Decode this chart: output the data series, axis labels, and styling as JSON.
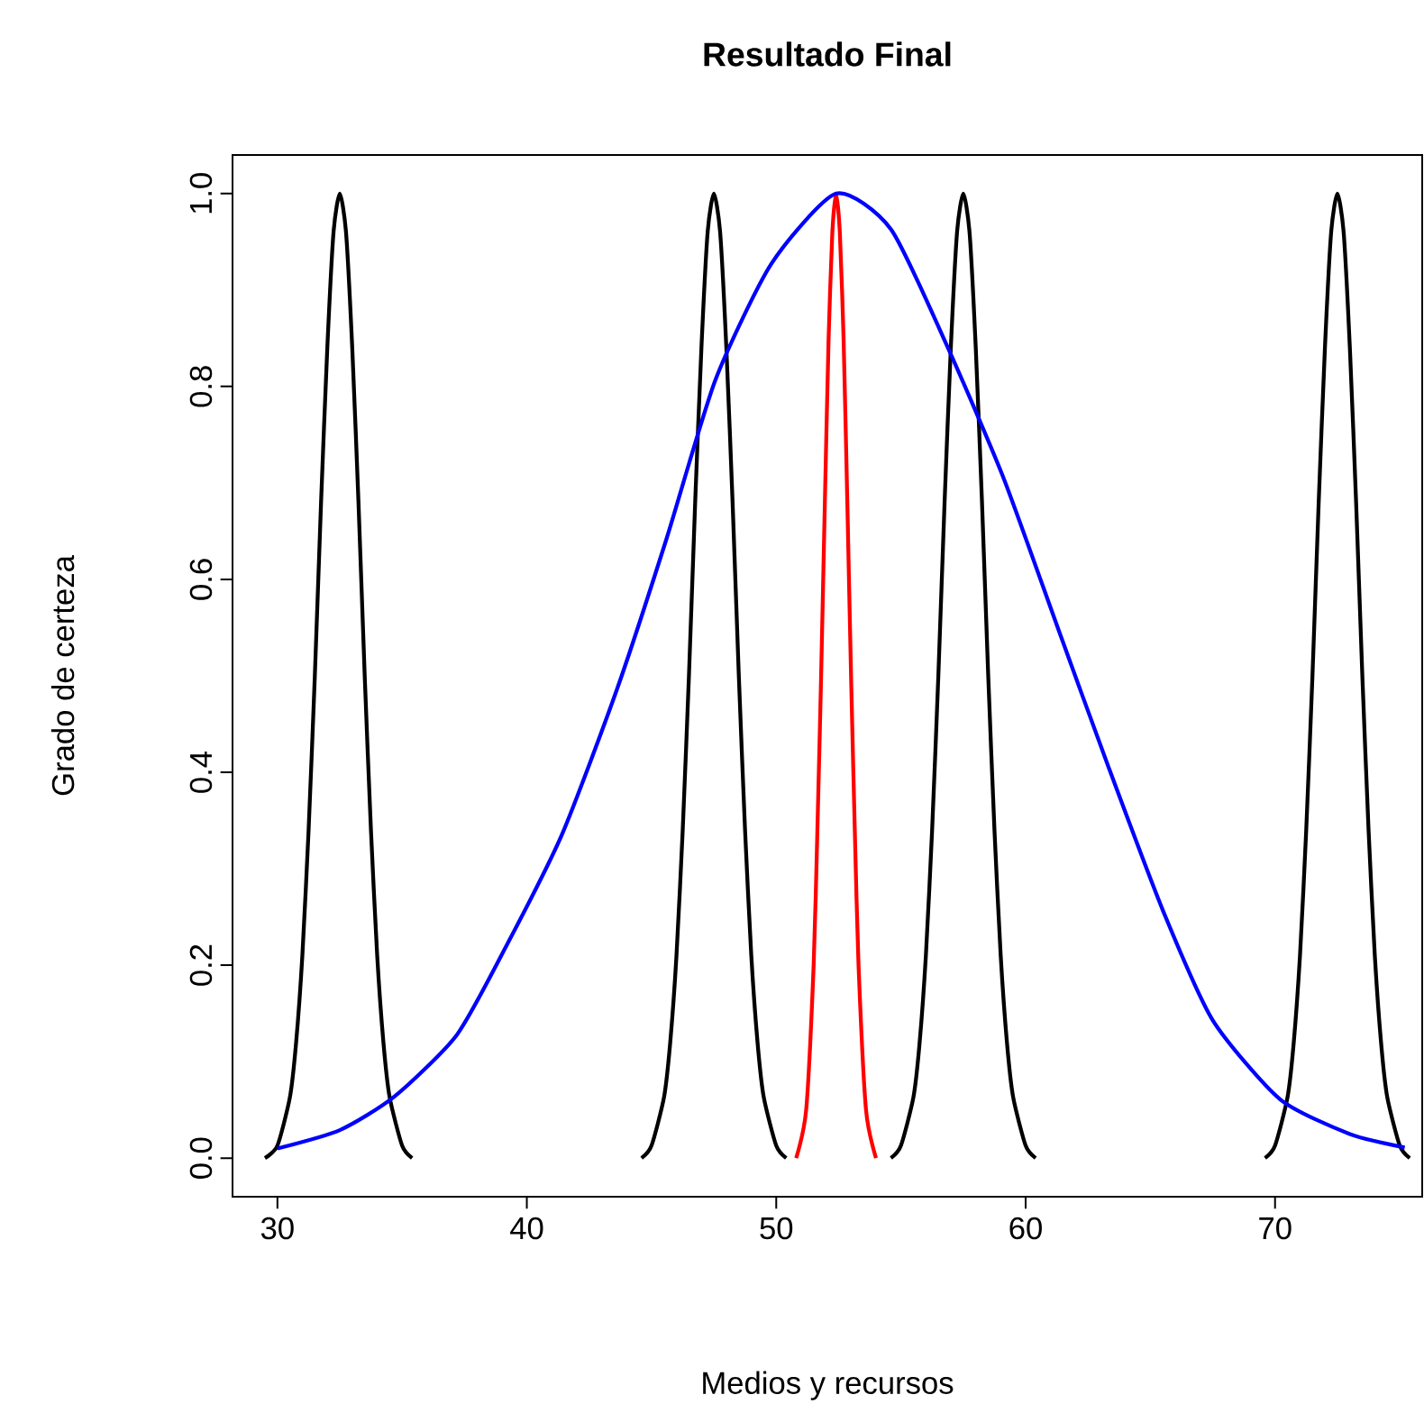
{
  "chart_data": {
    "type": "line",
    "title": "Resultado Final",
    "xlabel": "Medios y recursos",
    "ylabel": "Grado de certeza",
    "xlim": [
      28.2,
      75.9
    ],
    "ylim": [
      -0.04,
      1.04
    ],
    "xticks": [
      30,
      40,
      50,
      60,
      70
    ],
    "yticks": [
      {
        "value": 0,
        "label": "0.0"
      },
      {
        "value": 0.2,
        "label": "0.2"
      },
      {
        "value": 0.4,
        "label": "0.4"
      },
      {
        "value": 0.6,
        "label": "0.6"
      },
      {
        "value": 0.8,
        "label": "0.8"
      },
      {
        "value": 1,
        "label": "1.0"
      }
    ],
    "grid": false,
    "marker": "none",
    "line_style": "solid",
    "series": [
      {
        "color": "#000000",
        "x": [
          29.5,
          30.0,
          30.5,
          30.75,
          31.0,
          31.25,
          31.5,
          31.75,
          32.0,
          32.25,
          32.5,
          32.75,
          33.0,
          33.25,
          33.5,
          33.75,
          34.0,
          34.25,
          34.5,
          35.0,
          35.4
        ],
        "values": [
          0,
          0.013,
          0.063,
          0.12,
          0.21,
          0.34,
          0.5,
          0.68,
          0.84,
          0.96,
          1,
          0.96,
          0.84,
          0.68,
          0.5,
          0.34,
          0.21,
          0.12,
          0.063,
          0.013,
          0
        ]
      },
      {
        "color": "#000000",
        "x": [
          44.6,
          45.0,
          45.5,
          45.75,
          46.0,
          46.25,
          46.5,
          46.75,
          47.0,
          47.25,
          47.5,
          47.75,
          48.0,
          48.25,
          48.5,
          48.75,
          49.0,
          49.25,
          49.5,
          50.0,
          50.4
        ],
        "values": [
          0,
          0.013,
          0.063,
          0.12,
          0.21,
          0.34,
          0.5,
          0.68,
          0.84,
          0.96,
          1,
          0.96,
          0.84,
          0.68,
          0.5,
          0.34,
          0.21,
          0.12,
          0.063,
          0.013,
          0
        ]
      },
      {
        "color": "#000000",
        "x": [
          54.6,
          55.0,
          55.5,
          55.75,
          56.0,
          56.25,
          56.5,
          56.75,
          57.0,
          57.25,
          57.5,
          57.75,
          58.0,
          58.25,
          58.5,
          58.75,
          59.0,
          59.25,
          59.5,
          60.0,
          60.4
        ],
        "values": [
          0,
          0.013,
          0.063,
          0.12,
          0.21,
          0.34,
          0.5,
          0.68,
          0.84,
          0.96,
          1,
          0.96,
          0.84,
          0.68,
          0.5,
          0.34,
          0.21,
          0.12,
          0.063,
          0.013,
          0
        ]
      },
      {
        "color": "#000000",
        "x": [
          69.6,
          70.0,
          70.5,
          70.75,
          71.0,
          71.25,
          71.5,
          71.75,
          72.0,
          72.25,
          72.5,
          72.75,
          73.0,
          73.25,
          73.5,
          73.75,
          74.0,
          74.25,
          74.5,
          75.0,
          75.4
        ],
        "values": [
          0,
          0.013,
          0.063,
          0.12,
          0.21,
          0.34,
          0.5,
          0.68,
          0.84,
          0.96,
          1,
          0.96,
          0.84,
          0.68,
          0.5,
          0.34,
          0.21,
          0.12,
          0.063,
          0.013,
          0
        ]
      },
      {
        "color": "#ff0000",
        "x": [
          50.8,
          51.2,
          51.5,
          51.65,
          51.8,
          51.95,
          52.1,
          52.25,
          52.4,
          52.55,
          52.7,
          52.85,
          53.0,
          53.15,
          53.3,
          53.6,
          54.0
        ],
        "values": [
          0,
          0.05,
          0.2,
          0.34,
          0.5,
          0.68,
          0.85,
          0.96,
          1,
          0.96,
          0.85,
          0.68,
          0.5,
          0.34,
          0.2,
          0.05,
          0
        ]
      },
      {
        "color": "#0000ff",
        "x": [
          30.0,
          32.5,
          34.7,
          37.2,
          39.2,
          41.4,
          43.6,
          45.6,
          47.55,
          49.8,
          52.4,
          54.6,
          56.85,
          59.1,
          61.3,
          63.3,
          65.5,
          67.5,
          70.2,
          73.0,
          75.2
        ],
        "values": [
          0.01,
          0.029,
          0.064,
          0.128,
          0.221,
          0.335,
          0.485,
          0.642,
          0.806,
          0.927,
          1.0,
          0.963,
          0.842,
          0.706,
          0.549,
          0.407,
          0.257,
          0.143,
          0.061,
          0.025,
          0.011
        ]
      }
    ]
  }
}
